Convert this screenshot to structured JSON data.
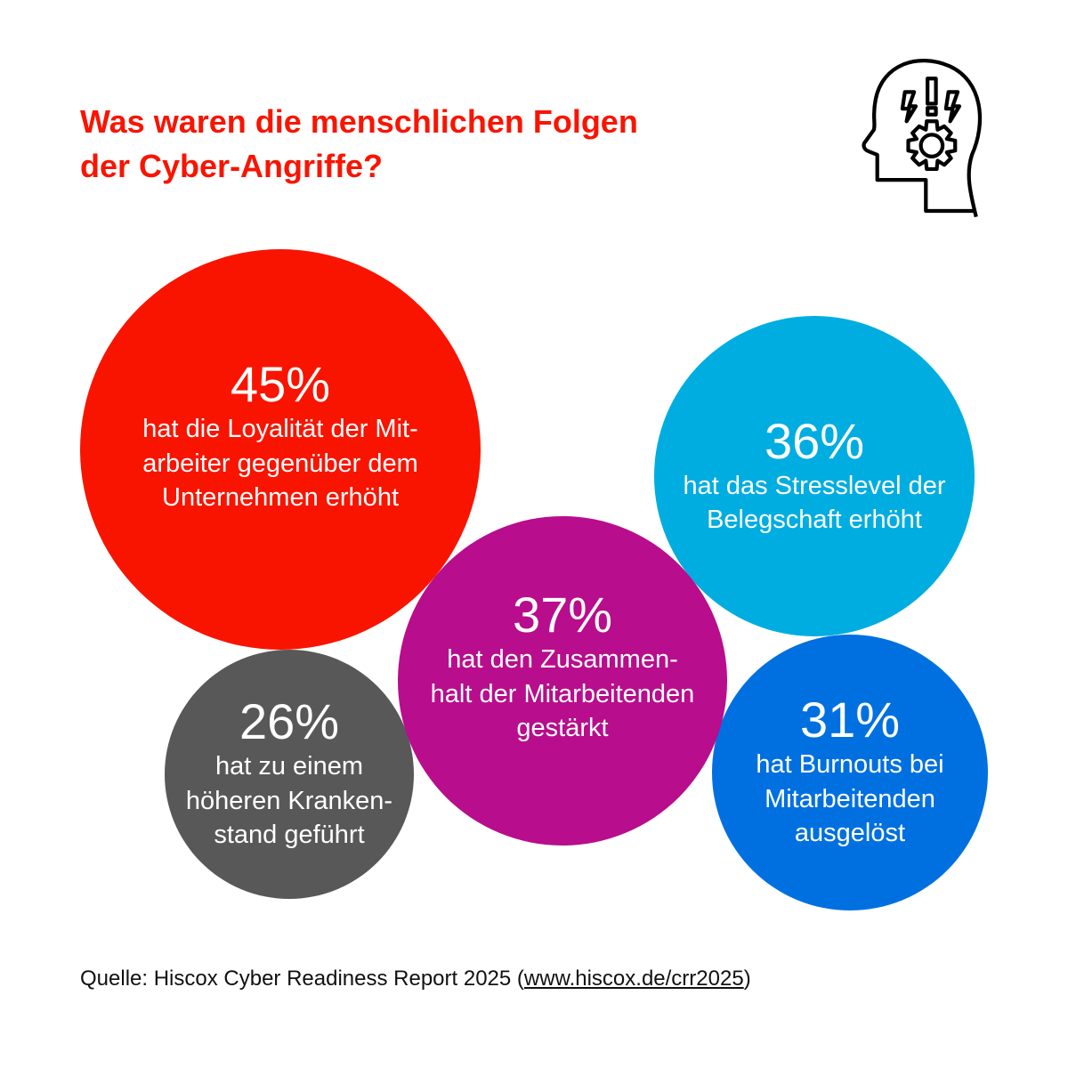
{
  "title_lines": [
    "Was waren die menschlichen Folgen",
    "der Cyber-Angriffe?"
  ],
  "icon": "head-with-gear-and-lightning-icon",
  "chart_data": {
    "type": "bubble",
    "title": "Was waren die menschlichen Folgen der Cyber-Angriffe?",
    "bubbles": [
      {
        "value": 45,
        "pct": "45%",
        "lines": [
          "hat die Loyalität der Mit-",
          "arbeiter gegenüber dem",
          "Unternehmen erhöht"
        ],
        "color": "#f91400"
      },
      {
        "value": 36,
        "pct": "36%",
        "lines": [
          "hat das Stresslevel der",
          "Belegschaft erhöht"
        ],
        "color": "#00ade0"
      },
      {
        "value": 37,
        "pct": "37%",
        "lines": [
          "hat den Zusammen-",
          "halt der Mitarbeitenden",
          "gestärkt"
        ],
        "color": "#b80d8c"
      },
      {
        "value": 26,
        "pct": "26%",
        "lines": [
          "hat zu einem",
          "höheren Kranken-",
          "stand geführt"
        ],
        "color": "#585858"
      },
      {
        "value": 31,
        "pct": "31%",
        "lines": [
          "hat Burnouts bei",
          "Mitarbeitenden",
          "ausgelöst"
        ],
        "color": "#0070e0"
      }
    ]
  },
  "source": {
    "prefix": "Quelle: Hiscox Cyber Readiness Report 2025 (",
    "link": "www.hiscox.de/crr2025",
    "suffix": ")"
  }
}
